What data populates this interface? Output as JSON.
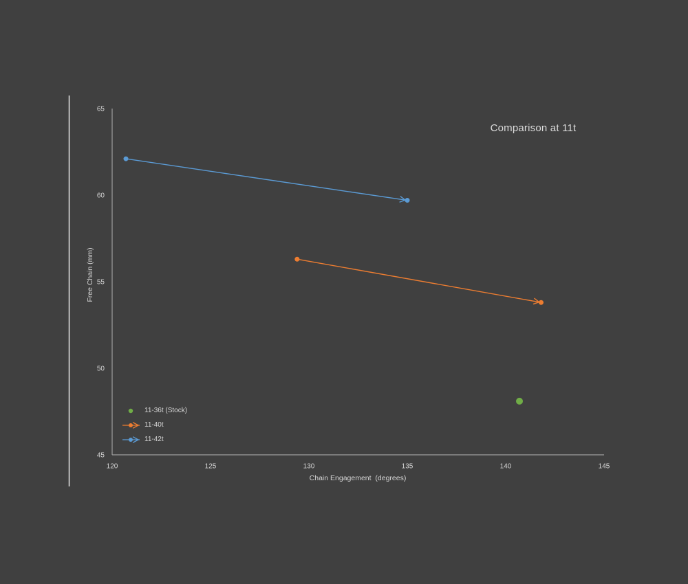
{
  "canvas": {
    "background_color": "#404040",
    "axis_color": "#9e9e9e",
    "text_color": "#d6d6d6",
    "title_color": "#dcdcdc",
    "border_line_color": "#f2f2f2"
  },
  "chart_data": {
    "type": "line",
    "title": "Comparison at 11t",
    "xlabel": "Chain Engagement  (degrees)",
    "ylabel": "Free Chain (mm)",
    "xlim": [
      120,
      145
    ],
    "ylim": [
      45,
      65
    ],
    "xticks": [
      120,
      125,
      130,
      135,
      140,
      145
    ],
    "yticks": [
      45,
      50,
      55,
      60,
      65
    ],
    "grid": false,
    "legend_position": "inside-bottom-left",
    "series": [
      {
        "name": "11-36t (Stock)",
        "color": "#70ad47",
        "style": "point",
        "marker_radius": 5,
        "points": [
          [
            140.7,
            48.1
          ]
        ]
      },
      {
        "name": "11-40t",
        "color": "#ed7d31",
        "style": "arrow-line",
        "marker_radius": 3.5,
        "points": [
          [
            129.4,
            56.3
          ],
          [
            141.8,
            53.8
          ]
        ]
      },
      {
        "name": "11-42t",
        "color": "#5b9bd5",
        "style": "arrow-line",
        "marker_radius": 3.5,
        "points": [
          [
            120.7,
            62.1
          ],
          [
            135.0,
            59.7
          ]
        ]
      }
    ]
  }
}
